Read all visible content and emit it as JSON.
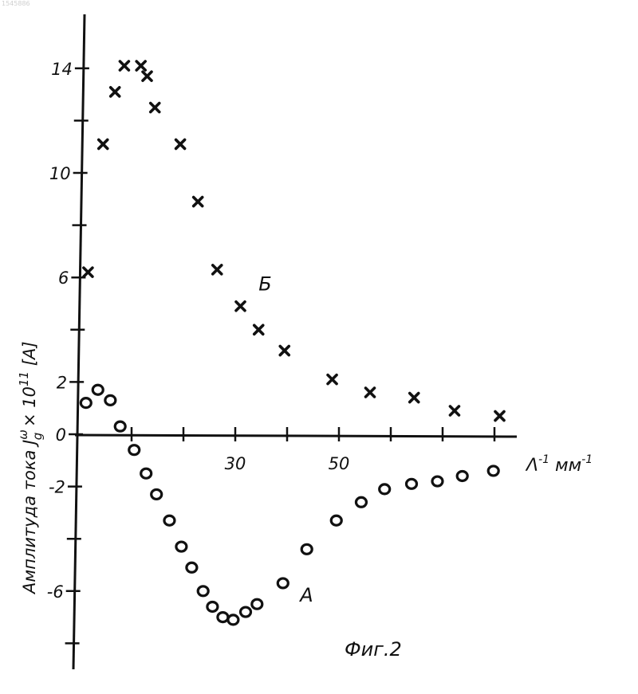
{
  "doc_id": "1545886",
  "figure_caption": "Фиг.2",
  "chart_data": {
    "type": "scatter",
    "title": "",
    "ylabel": "Амплитуда тока J",
    "ylabel_sup": "ω",
    "ylabel_sub": "g",
    "ylabel_tail": " × 10",
    "ylabel_exp": "11",
    "ylabel_unit": " [A]",
    "xlabel": "Λ",
    "xlabel_sup": "-1",
    "xlabel_unit": " мм",
    "xlabel_unit_sup": "-1",
    "x_tick_values": [
      10,
      20,
      30,
      40,
      50,
      60,
      70,
      80
    ],
    "x_tick_labels": [
      "",
      "",
      "30",
      "",
      "50",
      "",
      "",
      ""
    ],
    "y_tick_values": [
      -8,
      -6,
      -4,
      -2,
      0,
      2,
      4,
      6,
      8,
      10,
      12,
      14
    ],
    "y_tick_labels": [
      "",
      "-6",
      "",
      "-2",
      "0",
      "2",
      "",
      "6",
      "",
      "10",
      "",
      "14"
    ],
    "xlim": [
      0,
      84
    ],
    "ylim": [
      -9,
      16
    ],
    "grid": false,
    "series": [
      {
        "name": "Б",
        "marker": "cross",
        "x": [
          1.6,
          4.5,
          6.8,
          8.6,
          11.8,
          13,
          14.5,
          19.4,
          22.8,
          26.5,
          31,
          34.5,
          39.5,
          48.7,
          56,
          64.5,
          72.3,
          81
        ],
        "y": [
          6.2,
          11.1,
          13.1,
          14.1,
          14.1,
          13.7,
          12.5,
          11.1,
          8.9,
          6.3,
          4.9,
          4.0,
          3.2,
          2.1,
          1.6,
          1.4,
          0.9,
          0.7
        ]
      },
      {
        "name": "А",
        "marker": "circle",
        "x": [
          1.2,
          3.5,
          5.9,
          7.8,
          10.5,
          12.8,
          14.8,
          17.3,
          19.6,
          21.6,
          23.8,
          25.6,
          27.6,
          29.6,
          32,
          34.2,
          39.2,
          43.8,
          49.5,
          54.3,
          58.8,
          64,
          69,
          73.8,
          79.8
        ],
        "y": [
          1.2,
          1.7,
          1.3,
          0.3,
          -0.6,
          -1.5,
          -2.3,
          -3.3,
          -4.3,
          -5.1,
          -6.0,
          -6.6,
          -7.0,
          -7.1,
          -6.8,
          -6.5,
          -5.7,
          -4.4,
          -3.3,
          -2.6,
          -2.1,
          -1.9,
          -1.8,
          -1.6,
          -1.4
        ]
      }
    ],
    "annotations": [
      {
        "text": "Б",
        "x": 34.5,
        "y": 5.5
      },
      {
        "text": "А",
        "x": 42.5,
        "y": -6.4
      }
    ]
  }
}
